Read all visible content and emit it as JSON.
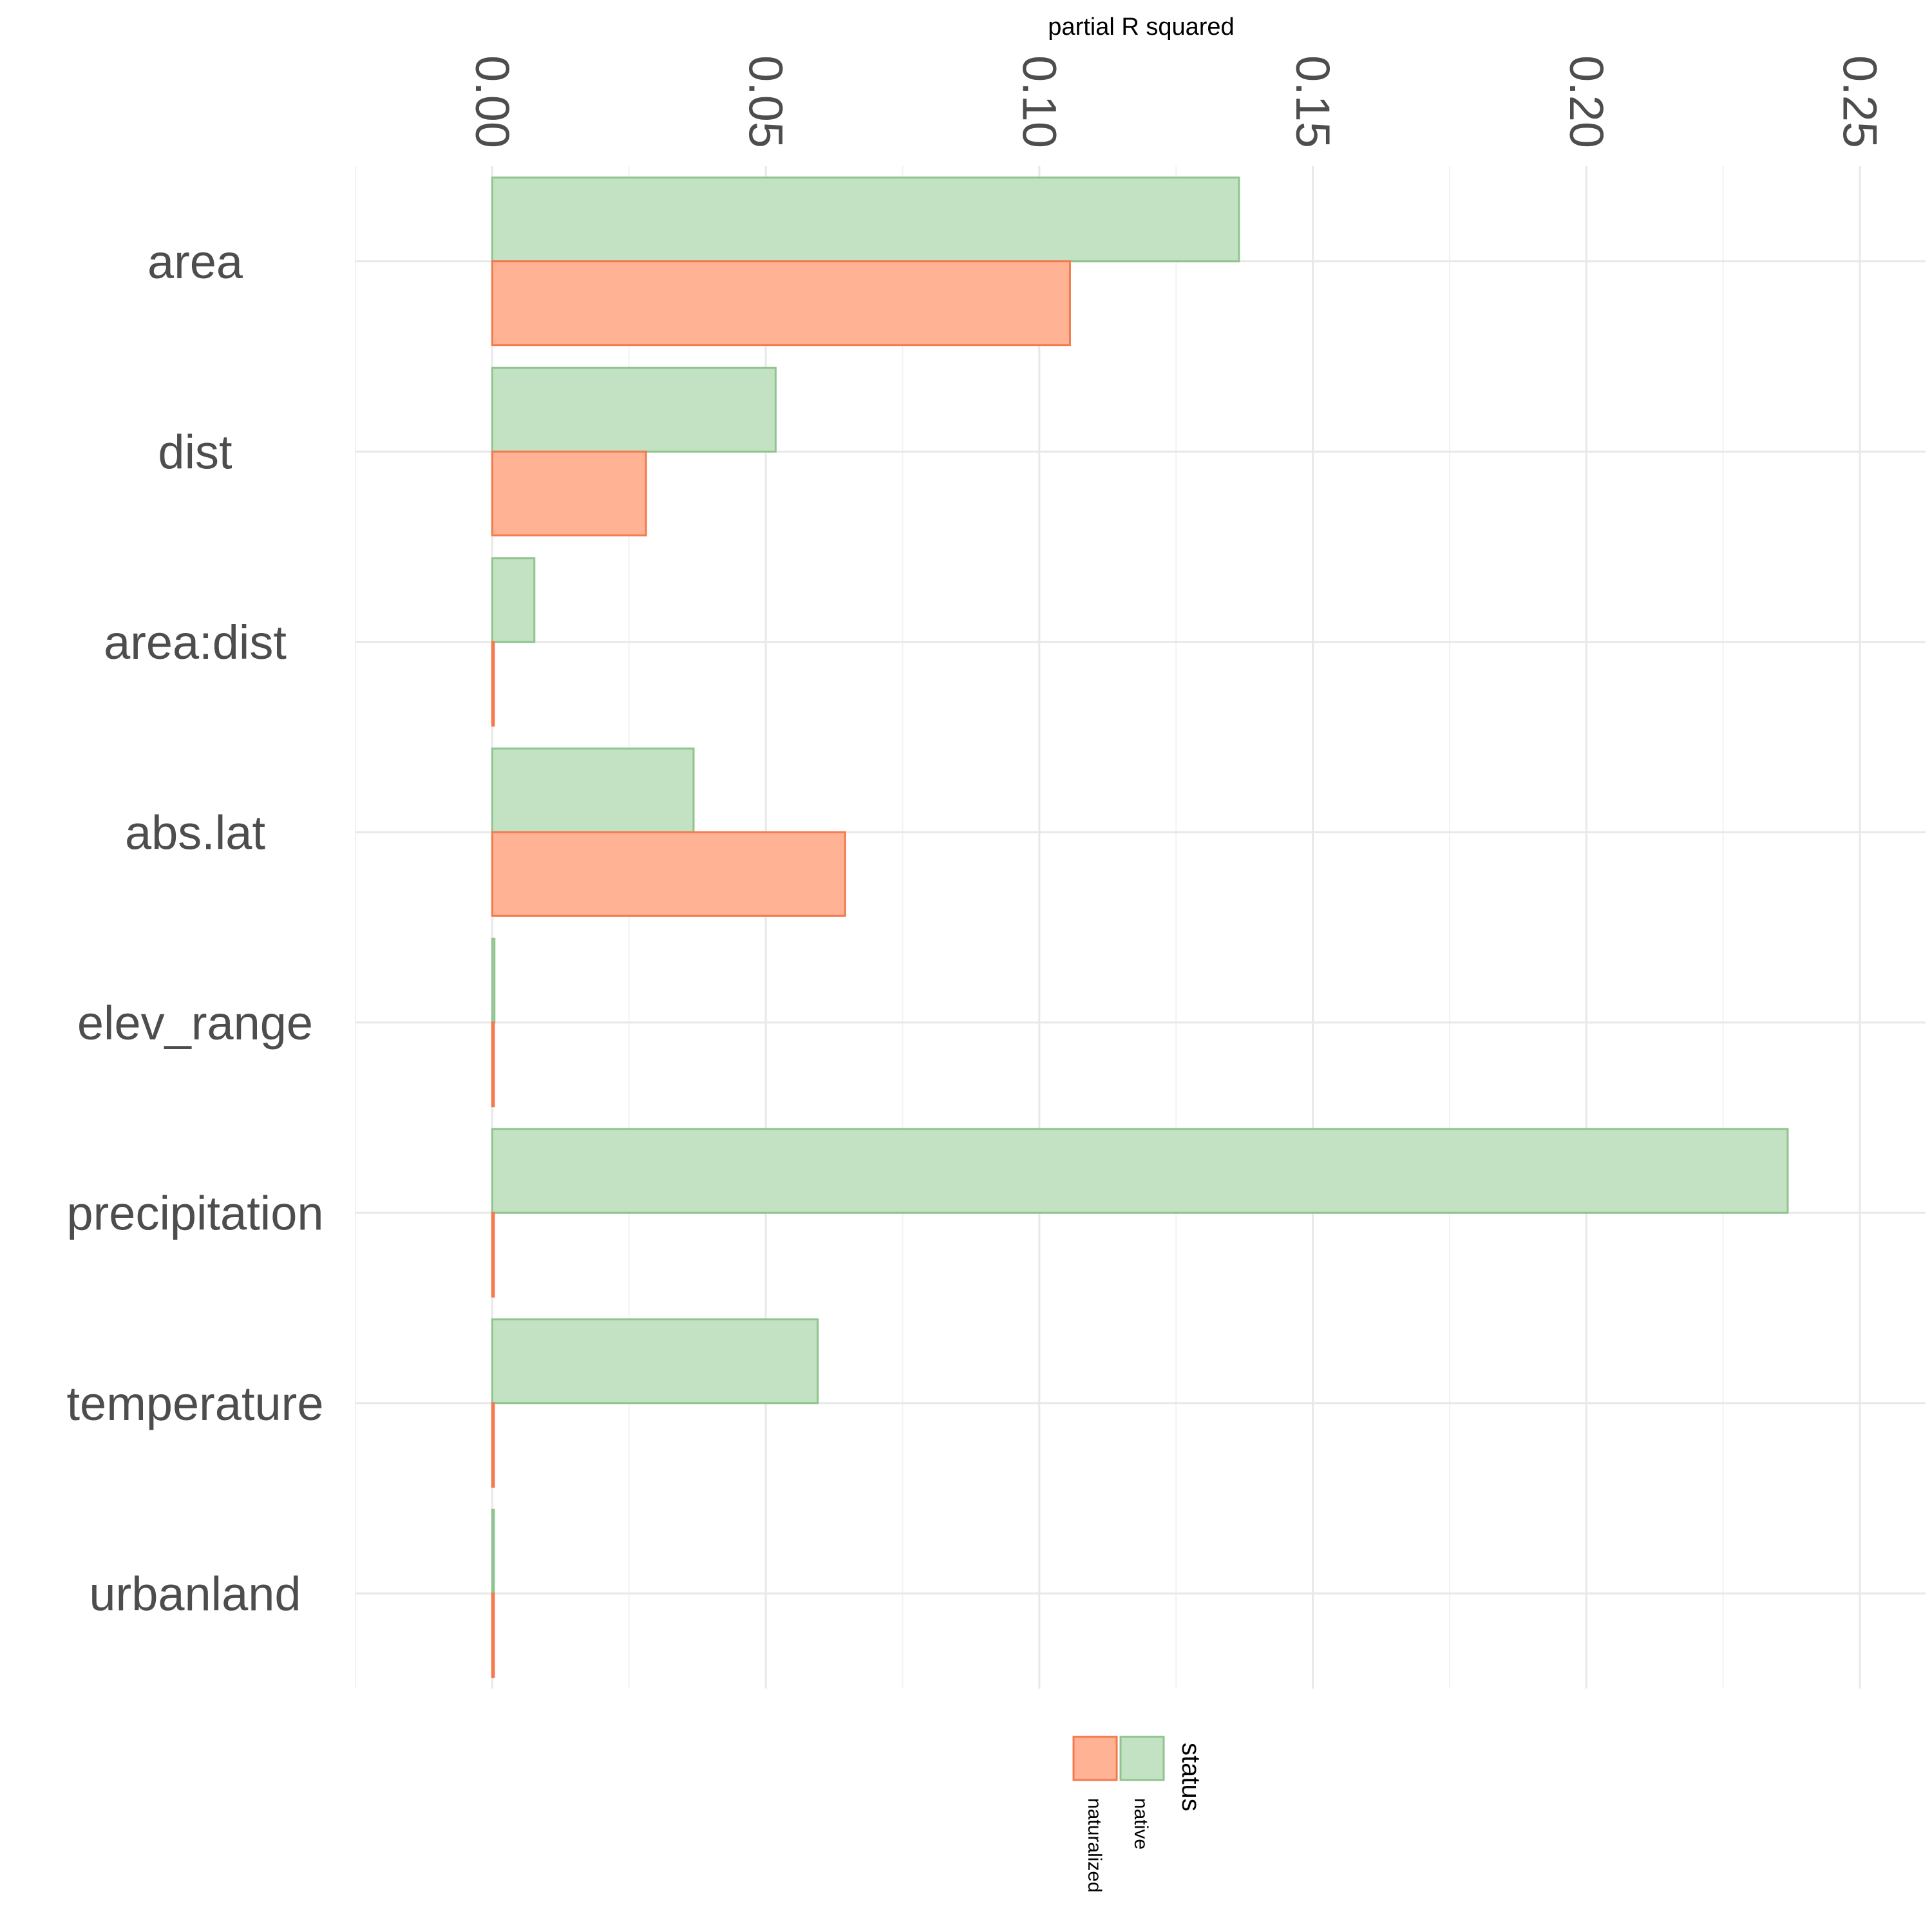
{
  "chart_data": {
    "type": "bar",
    "orientation": "horizontal",
    "title": "",
    "xlabel": "partial R squared",
    "ylabel": "",
    "xlim": [
      -0.025,
      0.262
    ],
    "x_ticks": [
      0.0,
      0.05,
      0.1,
      0.15,
      0.2,
      0.25
    ],
    "x_tick_labels": [
      "0.00",
      "0.05",
      "0.10",
      "0.15",
      "0.20",
      "0.25"
    ],
    "x_axis_position": "top",
    "x_tick_label_rotation": "90",
    "grid": true,
    "categories": [
      "area",
      "dist",
      "area:dist",
      "abs.lat",
      "elev_range",
      "precipitation",
      "temperature",
      "urbanland"
    ],
    "series": [
      {
        "name": "native",
        "color": "#c3e2c3",
        "stroke": "#8fc48f",
        "values": [
          0.1365,
          0.0518,
          0.0077,
          0.0368,
          0.0004,
          0.2368,
          0.0595,
          0.0003
        ]
      },
      {
        "name": "naturalized",
        "color": "#ffb294",
        "stroke": "#f47a4e",
        "values": [
          0.1056,
          0.0281,
          0.0003,
          0.0645,
          0.0003,
          0.0003,
          0.0003,
          0.0003
        ]
      }
    ],
    "legend": {
      "title": "status",
      "position": "bottom",
      "entries": [
        "naturalized",
        "native"
      ]
    }
  }
}
